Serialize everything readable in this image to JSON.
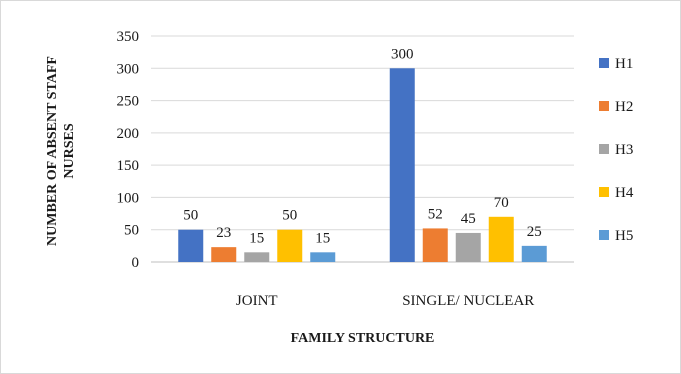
{
  "chart_data": {
    "type": "bar",
    "categories": [
      "JOINT",
      "SINGLE/ NUCLEAR"
    ],
    "series": [
      {
        "name": "H1",
        "values": [
          50,
          300
        ],
        "color": "#4472C4"
      },
      {
        "name": "H2",
        "values": [
          23,
          52
        ],
        "color": "#ED7D31"
      },
      {
        "name": "H3",
        "values": [
          15,
          45
        ],
        "color": "#A5A5A5"
      },
      {
        "name": "H4",
        "values": [
          50,
          70
        ],
        "color": "#FFC000"
      },
      {
        "name": "H5",
        "values": [
          15,
          25
        ],
        "color": "#5B9BD5"
      }
    ],
    "title": "",
    "xlabel": "FAMILY STRUCTURE",
    "ylabel": "NUMBER OF ABSENT STAFF NURSES",
    "ylim": [
      0,
      350
    ],
    "yticks": [
      0,
      50,
      100,
      150,
      200,
      250,
      300,
      350
    ],
    "grid": true,
    "legend_position": "right",
    "data_labels": true
  }
}
